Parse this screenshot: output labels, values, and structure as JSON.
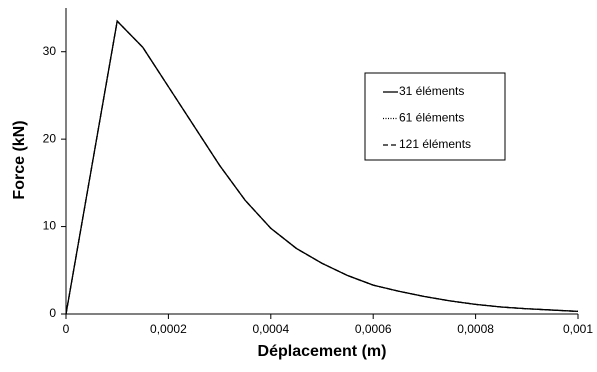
{
  "chart_data": {
    "type": "line",
    "xlabel": "Déplacement (m)",
    "ylabel": "Force (kN)",
    "x": [
      0,
      5e-05,
      0.0001,
      0.00015,
      0.0002,
      0.00025,
      0.0003,
      0.00035,
      0.0004,
      0.00045,
      0.0005,
      0.00055,
      0.0006,
      0.00065,
      0.0007,
      0.00075,
      0.0008,
      0.00085,
      0.0009,
      0.00095,
      0.001
    ],
    "series": [
      {
        "name": "31 éléments",
        "color": "#000000",
        "dash": "solid",
        "values": [
          0,
          16.75,
          33.5,
          30.5,
          26,
          21.5,
          17,
          13,
          9.8,
          7.5,
          5.8,
          4.4,
          3.3,
          2.6,
          2,
          1.5,
          1.1,
          0.8,
          0.6,
          0.45,
          0.3
        ]
      },
      {
        "name": "61 éléments",
        "color": "#000000",
        "dash": "dotted",
        "values": [
          0,
          16.75,
          33.5,
          30.5,
          26,
          21.5,
          17,
          13,
          9.8,
          7.5,
          5.8,
          4.4,
          3.3,
          2.6,
          2,
          1.5,
          1.1,
          0.8,
          0.6,
          0.45,
          0.3
        ]
      },
      {
        "name": "121 éléments",
        "color": "#000000",
        "dash": "dashed",
        "values": [
          0,
          16.75,
          33.5,
          30.5,
          26,
          21.5,
          17,
          13,
          9.8,
          7.5,
          5.8,
          4.4,
          3.3,
          2.6,
          2,
          1.5,
          1.1,
          0.8,
          0.6,
          0.45,
          0.3
        ]
      }
    ],
    "xlim": [
      0,
      0.001
    ],
    "xticks": [
      0,
      {
        "value": 0.0002,
        "label": "0,0002"
      },
      {
        "value": 0.0004,
        "label": "0,0004"
      },
      {
        "value": 0.0006,
        "label": "0,0006"
      },
      {
        "value": 0.0008,
        "label": "0,0008"
      },
      {
        "value": 0.001,
        "label": "0,001"
      }
    ],
    "ylim": [
      0,
      35
    ],
    "yticks": [
      0,
      10,
      20,
      30
    ],
    "grid": false,
    "legend": "upper right"
  }
}
